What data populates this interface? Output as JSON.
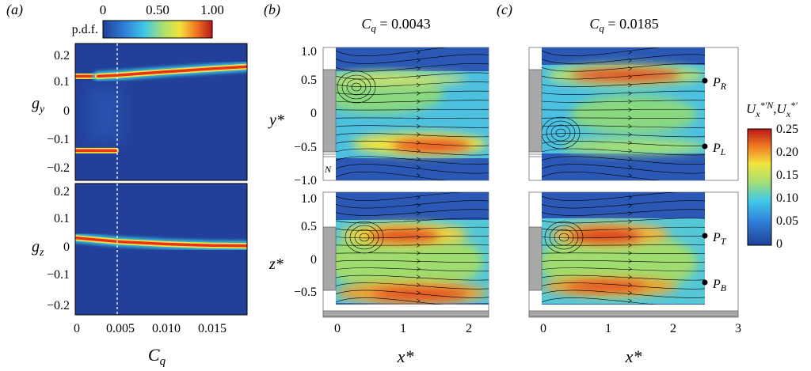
{
  "panels": {
    "a": {
      "label": "(a)",
      "colorbar_title": "p.d.f.",
      "colorbar_ticks": [
        "0",
        "0.50",
        "1.00"
      ],
      "ylabel_top": "g",
      "ylabel_top_sub": "y",
      "ylabel_bottom": "g",
      "ylabel_bottom_sub": "z",
      "xlabel": "C",
      "xlabel_sub": "q"
    },
    "b": {
      "label": "(b)",
      "title": "C_q = 0.0043",
      "marker": "N"
    },
    "c": {
      "label": "(c)",
      "title": "C_q = 0.0185",
      "points": [
        "P_R",
        "P_L",
        "P_T",
        "P_B"
      ]
    },
    "flow_colorbar": {
      "title": "U_x^{*′N}, U_x^{*′}",
      "ticks": [
        "0.25",
        "0.20",
        "0.15",
        "0.10",
        "0.05",
        "0"
      ]
    }
  },
  "chart_data": [
    {
      "type": "heatmap",
      "id": "a-gy",
      "xlabel": "C_q",
      "ylabel": "g_y",
      "xlim": [
        0,
        0.019
      ],
      "ylim": [
        -0.23,
        0.23
      ],
      "xticks": [
        "0",
        "0.005",
        "0.010",
        "0.015"
      ],
      "yticks": [
        "0.2",
        "0.1",
        "0",
        "−0.1",
        "−0.2"
      ],
      "vline_x": 0.0043,
      "colorbar": {
        "label": "p.d.f.",
        "range": [
          0,
          1
        ]
      },
      "ridges": [
        {
          "x": [
            0,
            0.0025
          ],
          "y": [
            0.12,
            0.12
          ]
        },
        {
          "x": [
            0.0025,
            0.005,
            0.01,
            0.015,
            0.019
          ],
          "y": [
            0.12,
            0.124,
            0.135,
            0.145,
            0.152
          ]
        },
        {
          "x": [
            0,
            0.0045
          ],
          "y": [
            -0.13,
            -0.13
          ]
        }
      ]
    },
    {
      "type": "heatmap",
      "id": "a-gz",
      "xlabel": "C_q",
      "ylabel": "g_z",
      "xlim": [
        0,
        0.019
      ],
      "ylim": [
        -0.23,
        0.23
      ],
      "xticks": [
        "0",
        "0.005",
        "0.010",
        "0.015"
      ],
      "yticks": [
        "0.2",
        "0.1",
        "0",
        "−0.1",
        "−0.2"
      ],
      "vline_x": 0.0043,
      "ridges": [
        {
          "x": [
            0,
            0.002,
            0.005,
            0.01,
            0.015,
            0.019
          ],
          "y": [
            0.04,
            0.034,
            0.026,
            0.018,
            0.013,
            0.012
          ]
        }
      ]
    },
    {
      "type": "heatmap",
      "id": "b-top",
      "title": "C_q = 0.0043",
      "xlabel": "x*",
      "ylabel": "y*",
      "xlim": [
        -0.2,
        2.3
      ],
      "ylim": [
        -1.0,
        1.0
      ],
      "xticks": [
        "0",
        "1",
        "2"
      ],
      "yticks": [
        "1.0",
        "0.5",
        "0",
        "−0.5",
        "−1.0"
      ]
    },
    {
      "type": "heatmap",
      "id": "b-bottom",
      "xlabel": "x*",
      "ylabel": "z*",
      "xlim": [
        -0.2,
        2.3
      ],
      "ylim": [
        -0.85,
        1.0
      ],
      "xticks": [
        "0",
        "1",
        "2"
      ],
      "yticks": [
        "1.0",
        "0.5",
        "0",
        "−0.5"
      ]
    },
    {
      "type": "heatmap",
      "id": "c-top",
      "title": "C_q = 0.0185",
      "xlabel": "x*",
      "xlim": [
        -0.2,
        3.0
      ],
      "ylim": [
        -1.0,
        1.0
      ],
      "xticks": [
        "0",
        "1",
        "2",
        "3"
      ]
    },
    {
      "type": "heatmap",
      "id": "c-bottom",
      "xlabel": "x*",
      "xlim": [
        -0.2,
        3.0
      ],
      "ylim": [
        -0.85,
        1.0
      ],
      "xticks": [
        "0",
        "1",
        "2",
        "3"
      ]
    }
  ]
}
